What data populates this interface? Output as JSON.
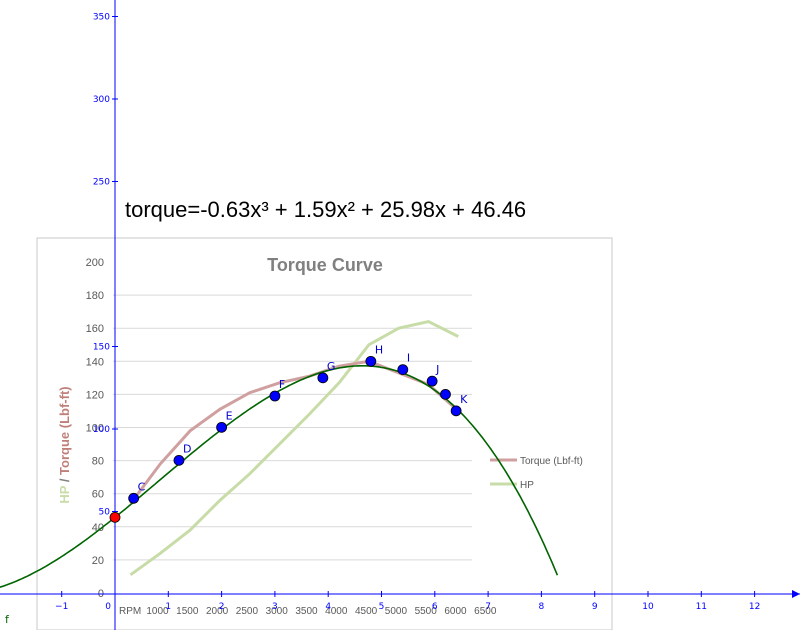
{
  "equation": "torque=-0.63x³ + 1.59x² + 25.98x + 46.46",
  "function_label": "f",
  "colors": {
    "axis": "#0000ff",
    "torque_series": "#d0a0a0",
    "hp_series": "#c8dca8",
    "fit_curve": "#006400",
    "points": "#0000ff",
    "origin_point": "#ff0000",
    "gridlines": "#d9d9d9"
  },
  "chart_data": [
    {
      "type": "line",
      "description_context": "geogebra-plane",
      "x_ticks": [
        "−1",
        "1",
        "2",
        "3",
        "4",
        "5",
        "6",
        "7",
        "8",
        "9",
        "10",
        "11",
        "12"
      ],
      "origin_label": "0",
      "y_ticks": [
        "50",
        "100",
        "150",
        "250",
        "300",
        "350"
      ],
      "xlim": [
        -2,
        13
      ],
      "ylim": [
        -20,
        365
      ],
      "grid": false,
      "fit": {
        "a3": -0.63,
        "a2": 1.59,
        "a1": 25.98,
        "a0": 46.46
      },
      "points": [
        {
          "label": "C",
          "x": 0.35,
          "y": 58
        },
        {
          "label": "D",
          "x": 1.2,
          "y": 81
        },
        {
          "label": "E",
          "x": 2.0,
          "y": 101
        },
        {
          "label": "F",
          "x": 3.0,
          "y": 120
        },
        {
          "label": "G",
          "x": 3.9,
          "y": 131
        },
        {
          "label": "H",
          "x": 4.8,
          "y": 141
        },
        {
          "label": "I",
          "x": 5.4,
          "y": 136
        },
        {
          "label": "J",
          "x": 5.95,
          "y": 129
        },
        {
          "label": "",
          "x": 6.2,
          "y": 121
        },
        {
          "label": "K",
          "x": 6.4,
          "y": 111
        }
      ],
      "origin_point": {
        "x": 0,
        "y": 46.46
      }
    },
    {
      "type": "line",
      "title": "Torque Curve",
      "ylabel_prefix": "HP",
      "ylabel_separator": " / ",
      "ylabel_main": "Torque (Lbf-ft)",
      "xlabel": "RPM",
      "categories": [
        "1000",
        "1500",
        "2000",
        "2500",
        "3000",
        "3500",
        "4000",
        "4500",
        "5000",
        "5500",
        "6000",
        "6500"
      ],
      "y_ticks": [
        "0",
        "20",
        "40",
        "60",
        "80",
        "100",
        "120",
        "140",
        "160",
        "180",
        "200"
      ],
      "ylim": [
        0,
        200
      ],
      "grid": true,
      "legend_position": "right",
      "series": [
        {
          "name": "Torque (Lbf-ft)",
          "values": [
            54,
            78,
            98,
            111,
            121,
            127,
            131,
            137,
            140,
            133,
            126,
            110
          ]
        },
        {
          "name": "HP",
          "values": [
            11,
            24,
            38,
            56,
            72,
            90,
            108,
            127,
            150,
            160,
            164,
            155
          ]
        }
      ]
    }
  ]
}
